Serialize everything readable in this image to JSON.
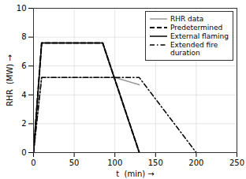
{
  "chart_data": {
    "type": "line",
    "xlabel": "t  (min)",
    "ylabel": "RHR  (MW)",
    "xlim": [
      0,
      250
    ],
    "ylim": [
      0,
      10
    ],
    "xticks": [
      0,
      50,
      100,
      150,
      200,
      250
    ],
    "yticks": [
      0,
      2,
      4,
      6,
      8,
      10
    ],
    "grid": true,
    "legend": "upper right",
    "series": [
      {
        "name": "RHR data",
        "color": "#999999",
        "line_style": "solid",
        "x": [
          0,
          10,
          100,
          130
        ],
        "values": [
          0,
          5.2,
          5.2,
          4.7
        ]
      },
      {
        "name": "Predetermined",
        "color": "#000000",
        "line_style": "dashed",
        "x": [
          0,
          10,
          85,
          130
        ],
        "values": [
          0,
          7.6,
          7.6,
          0
        ]
      },
      {
        "name": "External flaming",
        "color": "#000000",
        "line_style": "solid",
        "x": [
          0,
          10,
          85,
          130
        ],
        "values": [
          0,
          7.6,
          7.6,
          0
        ]
      },
      {
        "name": "Extended fire\nduration",
        "color": "#000000",
        "line_style": "dashdot",
        "x": [
          0,
          10,
          130,
          200
        ],
        "values": [
          0,
          5.2,
          5.2,
          0
        ]
      }
    ]
  }
}
